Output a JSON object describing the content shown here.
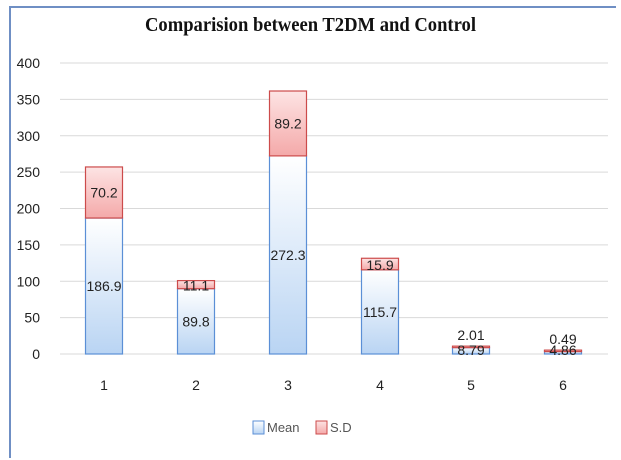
{
  "chart_data": {
    "type": "bar",
    "stacked": true,
    "title": "Comparision between T2DM and Control",
    "xlabel": "",
    "ylabel": "",
    "categories": [
      "1",
      "2",
      "3",
      "4",
      "5",
      "6"
    ],
    "series": [
      {
        "name": "Mean",
        "values": [
          186.9,
          89.8,
          272.3,
          115.7,
          8.79,
          4.86
        ]
      },
      {
        "name": "S.D",
        "values": [
          70.2,
          11.1,
          89.2,
          15.9,
          2.01,
          0.49
        ]
      }
    ],
    "ylim": [
      0,
      400
    ],
    "yticks": [
      0,
      50,
      100,
      150,
      200,
      250,
      300,
      350,
      400
    ],
    "grid": true,
    "legend": "bottom",
    "colors": {
      "Mean": {
        "fill_top": "#ffffff",
        "fill_bottom": "#b9d4f3",
        "stroke": "#5b8fd6"
      },
      "S.D": {
        "fill_top": "#fde4e4",
        "fill_bottom": "#f4a9a9",
        "stroke": "#cc4b4b"
      },
      "grid": "#d9d9d9",
      "frame": "#6f8fc4"
    }
  }
}
